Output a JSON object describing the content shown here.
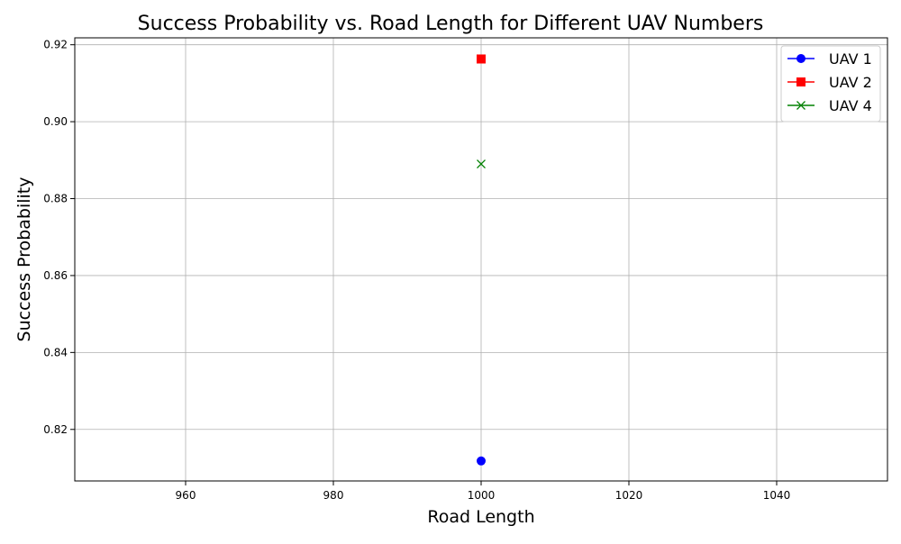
{
  "chart_data": {
    "type": "line",
    "title": "Success Probability vs. Road Length for Different UAV Numbers",
    "xlabel": "Road Length",
    "ylabel": "Success Probability",
    "xlim": [
      945,
      1055
    ],
    "ylim": [
      0.8066,
      0.9218
    ],
    "x_ticks": [
      960,
      980,
      1000,
      1020,
      1040
    ],
    "y_ticks": [
      0.82,
      0.84,
      0.86,
      0.88,
      0.9,
      0.92
    ],
    "x_tick_labels": [
      "960",
      "980",
      "1000",
      "1020",
      "1040"
    ],
    "y_tick_labels": [
      "0.82",
      "0.84",
      "0.86",
      "0.88",
      "0.90",
      "0.92"
    ],
    "grid": true,
    "legend_position": "top-right",
    "series": [
      {
        "name": "UAV 1",
        "x": [
          1000
        ],
        "y": [
          0.8118
        ],
        "color": "#0000ff",
        "marker": "circle"
      },
      {
        "name": "UAV 2",
        "x": [
          1000
        ],
        "y": [
          0.9163
        ],
        "color": "#ff0000",
        "marker": "square"
      },
      {
        "name": "UAV 4",
        "x": [
          1000
        ],
        "y": [
          0.889
        ],
        "color": "#008000",
        "marker": "x"
      }
    ]
  }
}
